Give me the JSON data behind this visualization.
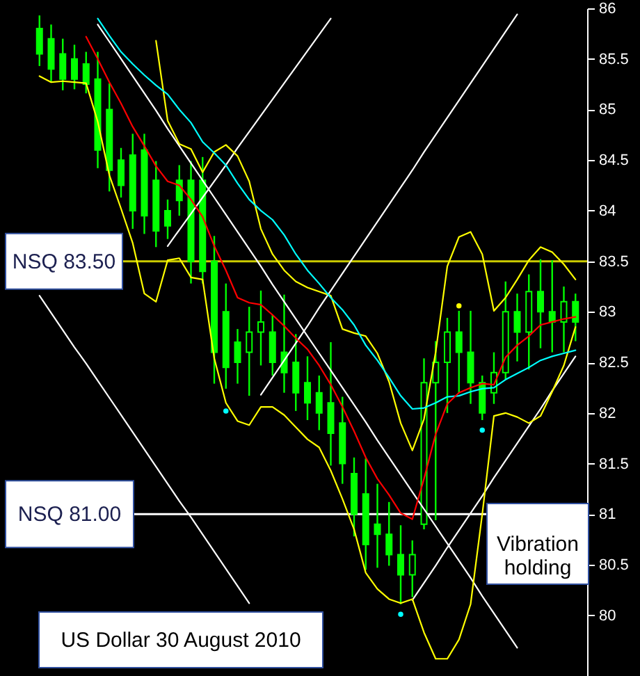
{
  "chart_data": {
    "type": "candlestick",
    "title": "US Dollar 30 August 2010",
    "categories": [
      null,
      null,
      null,
      null,
      null,
      null,
      null,
      null,
      null,
      null,
      null,
      null,
      null,
      null,
      null,
      null,
      null,
      null,
      null,
      null,
      null,
      null,
      null,
      null,
      null,
      null,
      null,
      null,
      null,
      null,
      null,
      null,
      null,
      null,
      null,
      null,
      null,
      null,
      null,
      null,
      null,
      null,
      null,
      null,
      null,
      null,
      null
    ],
    "color": "#00ff00",
    "ohlc": [
      [
        85.8,
        85.93,
        85.43,
        85.55
      ],
      [
        85.7,
        85.84,
        85.27,
        85.4
      ],
      [
        85.55,
        85.7,
        85.19,
        85.3
      ],
      [
        85.5,
        85.64,
        85.2,
        85.3
      ],
      [
        85.45,
        85.57,
        85.16,
        85.25
      ],
      [
        85.3,
        85.57,
        84.42,
        84.6
      ],
      [
        85.0,
        85.26,
        84.19,
        84.4
      ],
      [
        84.5,
        84.62,
        84.13,
        84.25
      ],
      [
        84.55,
        84.76,
        83.82,
        84.0
      ],
      [
        84.6,
        84.76,
        83.77,
        83.95
      ],
      [
        84.3,
        84.49,
        83.64,
        83.8
      ],
      [
        84.0,
        84.11,
        83.72,
        83.85
      ],
      [
        84.3,
        84.45,
        83.95,
        84.1
      ],
      [
        84.3,
        84.49,
        83.28,
        83.5
      ],
      [
        84.3,
        84.53,
        83.28,
        83.4
      ],
      [
        83.5,
        83.75,
        82.29,
        82.6
      ],
      [
        83.0,
        83.28,
        82.24,
        82.45
      ],
      [
        82.7,
        82.83,
        82.29,
        82.5
      ],
      [
        82.6,
        83.05,
        82.17,
        82.8
      ],
      [
        82.8,
        83.21,
        82.47,
        82.9
      ],
      [
        82.8,
        82.97,
        82.37,
        82.5
      ],
      [
        82.6,
        83.17,
        82.2,
        82.4
      ],
      [
        82.5,
        82.78,
        82.02,
        82.2
      ],
      [
        82.3,
        82.56,
        81.93,
        82.1
      ],
      [
        82.2,
        82.37,
        81.83,
        82.0
      ],
      [
        82.1,
        82.7,
        81.48,
        81.8
      ],
      [
        81.9,
        82.16,
        81.3,
        81.5
      ],
      [
        81.4,
        81.56,
        80.78,
        81.0
      ],
      [
        81.2,
        81.55,
        80.45,
        80.7
      ],
      [
        80.9,
        81.3,
        80.47,
        80.8
      ],
      [
        80.8,
        81.12,
        80.49,
        80.6
      ],
      [
        80.6,
        80.89,
        80.11,
        80.4
      ],
      [
        80.4,
        80.74,
        80.18,
        80.6
      ],
      [
        80.9,
        82.54,
        80.85,
        82.3
      ],
      [
        82.3,
        82.71,
        80.94,
        82.5
      ],
      [
        82.5,
        82.94,
        82.0,
        82.8
      ],
      [
        82.8,
        83.01,
        82.2,
        82.6
      ],
      [
        82.6,
        83.01,
        82.09,
        82.3
      ],
      [
        82.3,
        82.37,
        81.93,
        82.0
      ],
      [
        82.2,
        82.6,
        82.09,
        82.4
      ],
      [
        82.4,
        83.3,
        82.33,
        83.0
      ],
      [
        83.0,
        83.18,
        82.51,
        82.8
      ],
      [
        82.8,
        83.37,
        82.43,
        83.2
      ],
      [
        83.2,
        83.52,
        82.64,
        83.0
      ],
      [
        83.0,
        83.51,
        82.6,
        82.9
      ],
      [
        82.9,
        83.25,
        82.6,
        83.1
      ],
      [
        83.1,
        83.18,
        82.71,
        82.9
      ]
    ],
    "series": [
      {
        "type": "line",
        "color": "#ffffff",
        "values": [
          null,
          null,
          null,
          null,
          null,
          85.84,
          85.67,
          85.5,
          85.33,
          85.16,
          84.99,
          84.81,
          84.64,
          84.47,
          84.3,
          84.13,
          83.96,
          83.79,
          83.62,
          83.45,
          83.27,
          83.1,
          82.93,
          82.76,
          82.59,
          82.42,
          82.25,
          82.08,
          81.91,
          81.73,
          81.56,
          81.39,
          81.22,
          81.05,
          80.88,
          80.71,
          80.54,
          80.37,
          80.19,
          80.02,
          79.85,
          79.68,
          null,
          null,
          null,
          null,
          null
        ]
      },
      {
        "type": "line",
        "color": "#ffffff",
        "values": [
          83.16,
          82.99,
          82.82,
          82.65,
          82.49,
          82.32,
          82.15,
          81.98,
          81.81,
          81.64,
          81.47,
          81.3,
          81.13,
          80.97,
          80.8,
          80.63,
          80.46,
          80.29,
          80.12,
          null,
          null,
          null,
          null,
          null,
          null,
          null,
          null,
          null,
          null,
          null,
          null,
          null,
          null,
          null,
          null,
          null,
          null,
          null,
          null,
          null,
          null,
          null,
          null,
          null,
          null,
          null,
          null
        ]
      },
      {
        "type": "line",
        "color": "#ffffff",
        "values": [
          null,
          null,
          null,
          null,
          null,
          null,
          null,
          null,
          null,
          null,
          null,
          83.65,
          83.81,
          83.97,
          84.13,
          84.29,
          84.45,
          84.62,
          84.78,
          84.94,
          85.1,
          85.26,
          85.42,
          85.58,
          85.74,
          85.9,
          null,
          null,
          null,
          null,
          null,
          null,
          null,
          null,
          null,
          null,
          null,
          null,
          null,
          null,
          null,
          null,
          null,
          null,
          null,
          null,
          null
        ]
      },
      {
        "type": "line",
        "color": "#ffffff",
        "values": [
          null,
          null,
          null,
          null,
          null,
          null,
          null,
          null,
          null,
          null,
          null,
          null,
          null,
          null,
          null,
          null,
          null,
          null,
          null,
          82.18,
          82.35,
          82.52,
          82.69,
          82.86,
          83.04,
          83.21,
          83.38,
          83.55,
          83.72,
          83.89,
          84.06,
          84.23,
          84.4,
          84.58,
          84.75,
          84.92,
          85.09,
          85.26,
          85.43,
          85.6,
          85.77,
          85.94,
          null,
          null,
          null,
          null,
          null
        ]
      },
      {
        "type": "line",
        "color": "#ffffff",
        "values": [
          null,
          null,
          null,
          null,
          null,
          null,
          null,
          null,
          null,
          null,
          null,
          null,
          null,
          null,
          null,
          null,
          null,
          null,
          null,
          null,
          null,
          null,
          null,
          null,
          null,
          null,
          null,
          null,
          null,
          null,
          null,
          null,
          80.15,
          80.32,
          80.49,
          80.67,
          80.84,
          81.01,
          81.18,
          81.36,
          81.53,
          81.7,
          81.87,
          82.04,
          82.22,
          82.39,
          82.56
        ]
      },
      {
        "type": "line",
        "color": "#ffff00",
        "values": [
          85.33,
          85.27,
          85.28,
          85.27,
          85.26,
          84.88,
          84.35,
          84.02,
          83.68,
          83.18,
          83.1,
          83.51,
          83.53,
          83.34,
          83.32,
          82.54,
          82.1,
          81.92,
          81.88,
          82.06,
          82.06,
          81.98,
          81.86,
          81.74,
          81.66,
          81.43,
          81.15,
          80.85,
          80.42,
          80.26,
          80.16,
          80.12,
          80.16,
          79.83,
          79.57,
          79.57,
          79.76,
          80.11,
          81.0,
          81.97,
          82.0,
          81.96,
          81.9,
          81.97,
          82.21,
          82.47,
          82.85
        ]
      },
      {
        "type": "line",
        "color": "#ffff00",
        "values": [
          null,
          null,
          null,
          null,
          null,
          null,
          null,
          null,
          null,
          null,
          85.68,
          84.89,
          84.66,
          84.61,
          84.38,
          84.58,
          84.65,
          84.54,
          84.29,
          83.82,
          83.57,
          83.41,
          83.3,
          83.24,
          83.2,
          83.16,
          82.83,
          82.79,
          82.76,
          82.59,
          82.31,
          81.9,
          81.63,
          81.94,
          82.6,
          83.45,
          83.74,
          83.79,
          83.57,
          83.01,
          83.14,
          83.32,
          83.51,
          83.64,
          83.59,
          83.47,
          83.32
        ]
      },
      {
        "type": "line",
        "color": "#00ffff",
        "values": [
          null,
          null,
          null,
          null,
          null,
          85.9,
          85.73,
          85.57,
          85.45,
          85.34,
          85.24,
          85.15,
          85.0,
          84.87,
          84.68,
          84.57,
          84.45,
          84.27,
          84.11,
          84.0,
          83.91,
          83.76,
          83.57,
          83.41,
          83.28,
          83.14,
          83.02,
          82.87,
          82.67,
          82.52,
          82.35,
          82.17,
          82.04,
          82.05,
          82.1,
          82.16,
          82.17,
          82.21,
          82.24,
          82.25,
          82.33,
          82.39,
          82.45,
          82.52,
          82.56,
          82.59,
          82.62
        ]
      },
      {
        "type": "line",
        "color": "#ff0000",
        "values": [
          null,
          null,
          null,
          null,
          85.72,
          85.5,
          85.27,
          85.06,
          84.83,
          84.64,
          84.44,
          84.29,
          84.25,
          84.11,
          83.94,
          83.65,
          83.41,
          83.14,
          83.09,
          83.07,
          82.97,
          82.86,
          82.74,
          82.63,
          82.47,
          82.28,
          82.06,
          81.82,
          81.56,
          81.35,
          81.19,
          81.01,
          80.95,
          81.35,
          81.79,
          82.09,
          82.2,
          82.25,
          82.29,
          82.28,
          82.55,
          82.67,
          82.76,
          82.87,
          82.9,
          82.93,
          82.95
        ]
      },
      {
        "type": "scatter",
        "color": "#00ffff",
        "marker": "circle",
        "values": [
          null,
          null,
          null,
          null,
          null,
          null,
          null,
          null,
          null,
          null,
          null,
          null,
          null,
          null,
          null,
          null,
          82.02,
          null,
          null,
          null,
          null,
          null,
          null,
          null,
          null,
          null,
          null,
          null,
          null,
          null,
          null,
          80.01,
          null,
          null,
          null,
          null,
          null,
          null,
          81.83,
          null,
          null,
          null,
          null,
          null,
          null,
          null,
          null
        ]
      },
      {
        "type": "scatter",
        "color": "#ffff00",
        "marker": "circle",
        "values": [
          null,
          null,
          null,
          null,
          null,
          null,
          null,
          null,
          null,
          null,
          null,
          null,
          null,
          null,
          null,
          null,
          null,
          null,
          null,
          null,
          null,
          null,
          null,
          null,
          null,
          null,
          null,
          null,
          null,
          null,
          null,
          null,
          null,
          null,
          null,
          null,
          83.06,
          null,
          null,
          null,
          null,
          null,
          null,
          null,
          null,
          null,
          null
        ]
      }
    ],
    "ylim": [
      79.4,
      86.0
    ],
    "yticks": [
      80,
      80.5,
      81,
      81.5,
      82,
      82.5,
      83,
      83.5,
      84,
      84.5,
      85,
      85.5,
      86
    ],
    "ref_lines": [
      {
        "axis": "y",
        "value": 83.5,
        "label": "NSQ 83.50",
        "color": "#cccc00"
      },
      {
        "axis": "y",
        "value": 81,
        "label": "NSQ 81.00",
        "color": "#ffffff"
      }
    ],
    "annotations": [
      "Vibration holding"
    ],
    "grid": false,
    "tick_labels": "y"
  }
}
